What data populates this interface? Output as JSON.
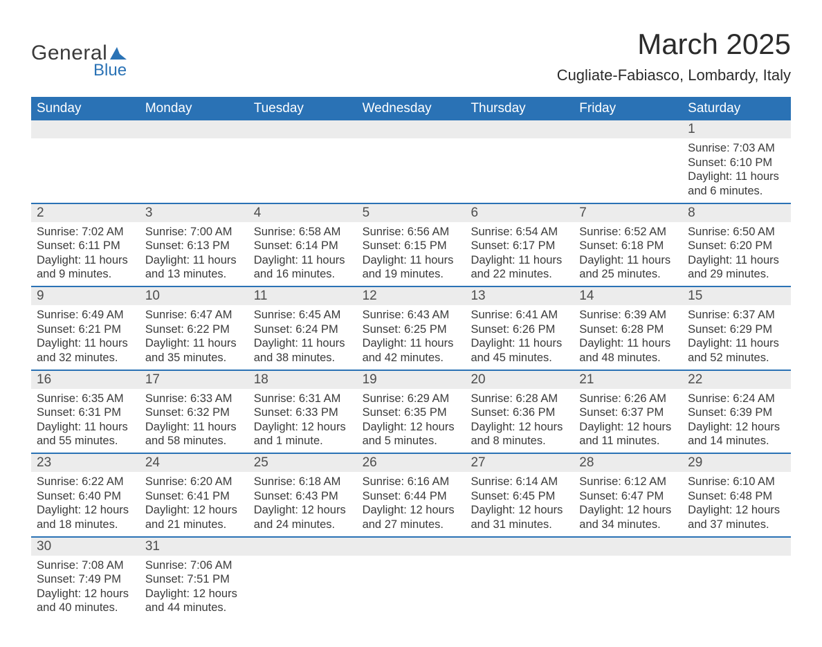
{
  "logo": {
    "text_general": "General",
    "text_blue": "Blue",
    "icon_color": "#2a72b5"
  },
  "title": "March 2025",
  "location": "Cugliate-Fabiasco, Lombardy, Italy",
  "colors": {
    "header_bg": "#2a72b5",
    "header_text": "#ffffff",
    "daynum_bg": "#ececec",
    "text": "#3a3a3a",
    "border": "#2a72b5"
  },
  "day_headers": [
    "Sunday",
    "Monday",
    "Tuesday",
    "Wednesday",
    "Thursday",
    "Friday",
    "Saturday"
  ],
  "weeks": [
    {
      "nums": [
        "",
        "",
        "",
        "",
        "",
        "",
        "1"
      ],
      "data": [
        null,
        null,
        null,
        null,
        null,
        null,
        {
          "sunrise": "Sunrise: 7:03 AM",
          "sunset": "Sunset: 6:10 PM",
          "dl1": "Daylight: 11 hours",
          "dl2": "and 6 minutes."
        }
      ]
    },
    {
      "nums": [
        "2",
        "3",
        "4",
        "5",
        "6",
        "7",
        "8"
      ],
      "data": [
        {
          "sunrise": "Sunrise: 7:02 AM",
          "sunset": "Sunset: 6:11 PM",
          "dl1": "Daylight: 11 hours",
          "dl2": "and 9 minutes."
        },
        {
          "sunrise": "Sunrise: 7:00 AM",
          "sunset": "Sunset: 6:13 PM",
          "dl1": "Daylight: 11 hours",
          "dl2": "and 13 minutes."
        },
        {
          "sunrise": "Sunrise: 6:58 AM",
          "sunset": "Sunset: 6:14 PM",
          "dl1": "Daylight: 11 hours",
          "dl2": "and 16 minutes."
        },
        {
          "sunrise": "Sunrise: 6:56 AM",
          "sunset": "Sunset: 6:15 PM",
          "dl1": "Daylight: 11 hours",
          "dl2": "and 19 minutes."
        },
        {
          "sunrise": "Sunrise: 6:54 AM",
          "sunset": "Sunset: 6:17 PM",
          "dl1": "Daylight: 11 hours",
          "dl2": "and 22 minutes."
        },
        {
          "sunrise": "Sunrise: 6:52 AM",
          "sunset": "Sunset: 6:18 PM",
          "dl1": "Daylight: 11 hours",
          "dl2": "and 25 minutes."
        },
        {
          "sunrise": "Sunrise: 6:50 AM",
          "sunset": "Sunset: 6:20 PM",
          "dl1": "Daylight: 11 hours",
          "dl2": "and 29 minutes."
        }
      ]
    },
    {
      "nums": [
        "9",
        "10",
        "11",
        "12",
        "13",
        "14",
        "15"
      ],
      "data": [
        {
          "sunrise": "Sunrise: 6:49 AM",
          "sunset": "Sunset: 6:21 PM",
          "dl1": "Daylight: 11 hours",
          "dl2": "and 32 minutes."
        },
        {
          "sunrise": "Sunrise: 6:47 AM",
          "sunset": "Sunset: 6:22 PM",
          "dl1": "Daylight: 11 hours",
          "dl2": "and 35 minutes."
        },
        {
          "sunrise": "Sunrise: 6:45 AM",
          "sunset": "Sunset: 6:24 PM",
          "dl1": "Daylight: 11 hours",
          "dl2": "and 38 minutes."
        },
        {
          "sunrise": "Sunrise: 6:43 AM",
          "sunset": "Sunset: 6:25 PM",
          "dl1": "Daylight: 11 hours",
          "dl2": "and 42 minutes."
        },
        {
          "sunrise": "Sunrise: 6:41 AM",
          "sunset": "Sunset: 6:26 PM",
          "dl1": "Daylight: 11 hours",
          "dl2": "and 45 minutes."
        },
        {
          "sunrise": "Sunrise: 6:39 AM",
          "sunset": "Sunset: 6:28 PM",
          "dl1": "Daylight: 11 hours",
          "dl2": "and 48 minutes."
        },
        {
          "sunrise": "Sunrise: 6:37 AM",
          "sunset": "Sunset: 6:29 PM",
          "dl1": "Daylight: 11 hours",
          "dl2": "and 52 minutes."
        }
      ]
    },
    {
      "nums": [
        "16",
        "17",
        "18",
        "19",
        "20",
        "21",
        "22"
      ],
      "data": [
        {
          "sunrise": "Sunrise: 6:35 AM",
          "sunset": "Sunset: 6:31 PM",
          "dl1": "Daylight: 11 hours",
          "dl2": "and 55 minutes."
        },
        {
          "sunrise": "Sunrise: 6:33 AM",
          "sunset": "Sunset: 6:32 PM",
          "dl1": "Daylight: 11 hours",
          "dl2": "and 58 minutes."
        },
        {
          "sunrise": "Sunrise: 6:31 AM",
          "sunset": "Sunset: 6:33 PM",
          "dl1": "Daylight: 12 hours",
          "dl2": "and 1 minute."
        },
        {
          "sunrise": "Sunrise: 6:29 AM",
          "sunset": "Sunset: 6:35 PM",
          "dl1": "Daylight: 12 hours",
          "dl2": "and 5 minutes."
        },
        {
          "sunrise": "Sunrise: 6:28 AM",
          "sunset": "Sunset: 6:36 PM",
          "dl1": "Daylight: 12 hours",
          "dl2": "and 8 minutes."
        },
        {
          "sunrise": "Sunrise: 6:26 AM",
          "sunset": "Sunset: 6:37 PM",
          "dl1": "Daylight: 12 hours",
          "dl2": "and 11 minutes."
        },
        {
          "sunrise": "Sunrise: 6:24 AM",
          "sunset": "Sunset: 6:39 PM",
          "dl1": "Daylight: 12 hours",
          "dl2": "and 14 minutes."
        }
      ]
    },
    {
      "nums": [
        "23",
        "24",
        "25",
        "26",
        "27",
        "28",
        "29"
      ],
      "data": [
        {
          "sunrise": "Sunrise: 6:22 AM",
          "sunset": "Sunset: 6:40 PM",
          "dl1": "Daylight: 12 hours",
          "dl2": "and 18 minutes."
        },
        {
          "sunrise": "Sunrise: 6:20 AM",
          "sunset": "Sunset: 6:41 PM",
          "dl1": "Daylight: 12 hours",
          "dl2": "and 21 minutes."
        },
        {
          "sunrise": "Sunrise: 6:18 AM",
          "sunset": "Sunset: 6:43 PM",
          "dl1": "Daylight: 12 hours",
          "dl2": "and 24 minutes."
        },
        {
          "sunrise": "Sunrise: 6:16 AM",
          "sunset": "Sunset: 6:44 PM",
          "dl1": "Daylight: 12 hours",
          "dl2": "and 27 minutes."
        },
        {
          "sunrise": "Sunrise: 6:14 AM",
          "sunset": "Sunset: 6:45 PM",
          "dl1": "Daylight: 12 hours",
          "dl2": "and 31 minutes."
        },
        {
          "sunrise": "Sunrise: 6:12 AM",
          "sunset": "Sunset: 6:47 PM",
          "dl1": "Daylight: 12 hours",
          "dl2": "and 34 minutes."
        },
        {
          "sunrise": "Sunrise: 6:10 AM",
          "sunset": "Sunset: 6:48 PM",
          "dl1": "Daylight: 12 hours",
          "dl2": "and 37 minutes."
        }
      ]
    },
    {
      "nums": [
        "30",
        "31",
        "",
        "",
        "",
        "",
        ""
      ],
      "data": [
        {
          "sunrise": "Sunrise: 7:08 AM",
          "sunset": "Sunset: 7:49 PM",
          "dl1": "Daylight: 12 hours",
          "dl2": "and 40 minutes."
        },
        {
          "sunrise": "Sunrise: 7:06 AM",
          "sunset": "Sunset: 7:51 PM",
          "dl1": "Daylight: 12 hours",
          "dl2": "and 44 minutes."
        },
        null,
        null,
        null,
        null,
        null
      ]
    }
  ]
}
